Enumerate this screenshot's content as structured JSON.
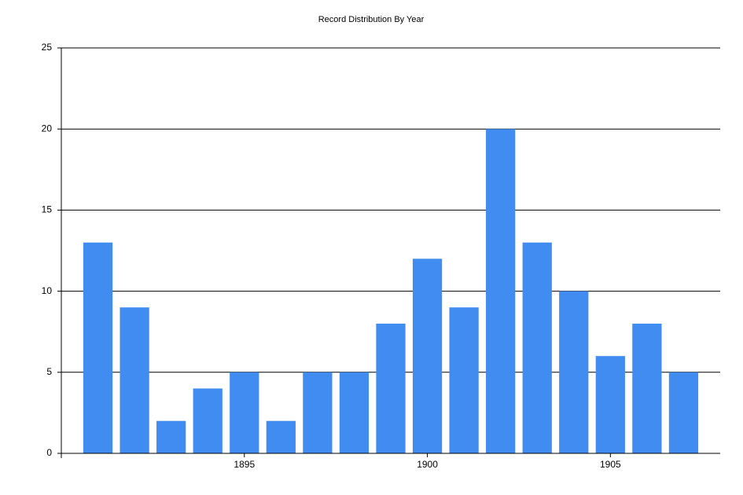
{
  "chart_data": {
    "type": "bar",
    "title": "Record Distribution By Year",
    "x": [
      1891,
      1892,
      1893,
      1894,
      1895,
      1896,
      1897,
      1898,
      1899,
      1900,
      1901,
      1902,
      1903,
      1904,
      1905,
      1906,
      1907
    ],
    "values": [
      13,
      9,
      2,
      4,
      5,
      2,
      5,
      5,
      8,
      12,
      9,
      20,
      13,
      10,
      6,
      8,
      5
    ],
    "color": "#418cf0",
    "xlim": [
      1890,
      1908
    ],
    "xticks": [
      1895,
      1900,
      1905
    ],
    "ylim": [
      0,
      25
    ],
    "yticks": [
      0,
      5,
      10,
      15,
      20,
      25
    ],
    "grid": true
  }
}
